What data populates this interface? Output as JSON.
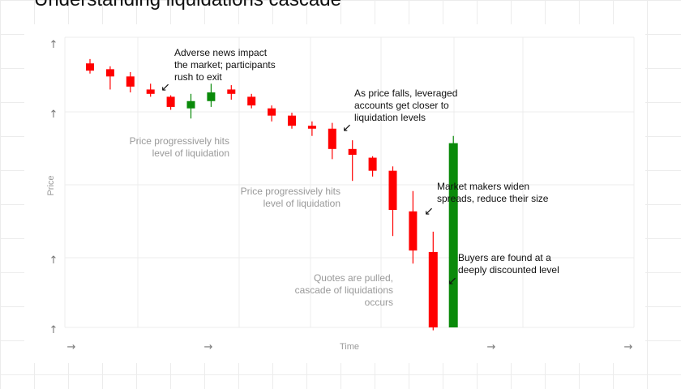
{
  "title": "Understanding liquidations cascade",
  "chart_data": {
    "type": "candlestick",
    "title": "Understanding liquidations cascade",
    "xlabel": "Time",
    "ylabel": "Price",
    "x_tick_labels": [
      "→",
      "→",
      "→",
      "→"
    ],
    "y_tick_labels": [
      "↑",
      "↑",
      "↑",
      "↑"
    ],
    "ylim": [
      0,
      100
    ],
    "grid": true,
    "colors": {
      "down": "#ff0000",
      "up": "#0a8a0a"
    },
    "candles": [
      {
        "open": 91,
        "close": 88.5,
        "high": 92.5,
        "low": 87.5
      },
      {
        "open": 89,
        "close": 86.5,
        "high": 90,
        "low": 82
      },
      {
        "open": 86.5,
        "close": 83,
        "high": 88,
        "low": 81
      },
      {
        "open": 82,
        "close": 80.5,
        "high": 84,
        "low": 79.5
      },
      {
        "open": 79.5,
        "close": 76,
        "high": 80,
        "low": 75
      },
      {
        "open": 75.5,
        "close": 78,
        "high": 80.5,
        "low": 72
      },
      {
        "open": 78,
        "close": 81,
        "high": 84,
        "low": 76
      },
      {
        "open": 82,
        "close": 80.5,
        "high": 83.5,
        "low": 78.5
      },
      {
        "open": 79.5,
        "close": 76.5,
        "high": 80.5,
        "low": 75.5
      },
      {
        "open": 75.5,
        "close": 73,
        "high": 76.5,
        "low": 71
      },
      {
        "open": 73,
        "close": 69.5,
        "high": 74,
        "low": 68.5
      },
      {
        "open": 69.5,
        "close": 68.5,
        "high": 71,
        "low": 66
      },
      {
        "open": 68.5,
        "close": 61.5,
        "high": 70.5,
        "low": 58
      },
      {
        "open": 61.5,
        "close": 59.5,
        "high": 64.5,
        "low": 50.5
      },
      {
        "open": 58.5,
        "close": 54,
        "high": 59,
        "low": 52
      },
      {
        "open": 54,
        "close": 40.5,
        "high": 55.5,
        "low": 31.5
      },
      {
        "open": 40,
        "close": 26.5,
        "high": 47,
        "low": 22
      },
      {
        "open": 26,
        "close": 0,
        "high": 33,
        "low": -1
      },
      {
        "open": 0,
        "close": 63.5,
        "high": 66,
        "low": 0
      }
    ],
    "annotations": [
      {
        "text": [
          "Adverse news impact",
          "the market; participants",
          "rush to exit"
        ],
        "style": "dark",
        "arrow": "↙"
      },
      {
        "text": [
          "As price falls, leveraged",
          "accounts get closer to",
          "liquidation levels"
        ],
        "style": "dark",
        "arrow": "↙"
      },
      {
        "text": [
          "Price progressively hits",
          "level of liquidation"
        ],
        "style": "gray"
      },
      {
        "text": [
          "Price progressively hits",
          "level of liquidation"
        ],
        "style": "gray"
      },
      {
        "text": [
          "Market makers widen",
          "spreads, reduce their size"
        ],
        "style": "dark",
        "arrow": "↙"
      },
      {
        "text": [
          "Buyers are found at a",
          "deeply discounted level"
        ],
        "style": "dark",
        "arrow": "↙"
      },
      {
        "text": [
          "Quotes are pulled,",
          "cascade of liquidations",
          "occurs"
        ],
        "style": "gray"
      }
    ]
  }
}
